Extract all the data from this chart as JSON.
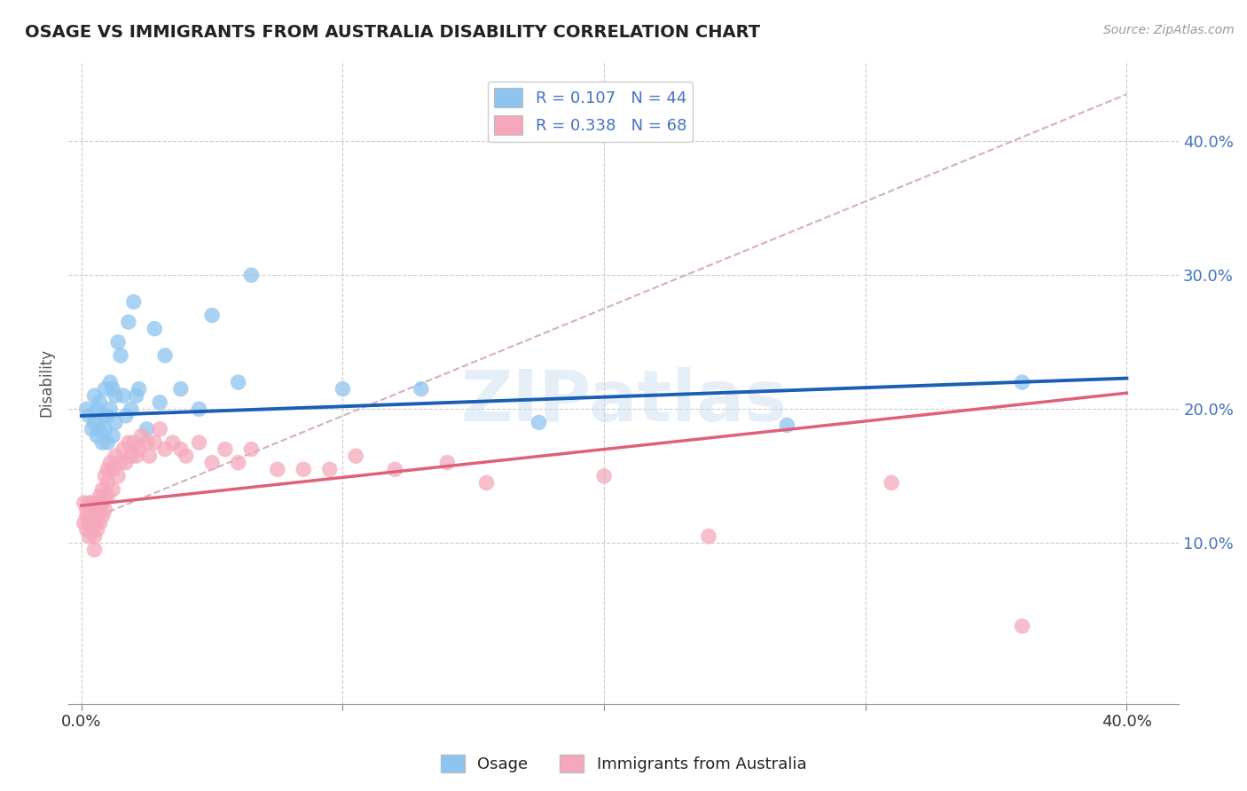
{
  "title": "OSAGE VS IMMIGRANTS FROM AUSTRALIA DISABILITY CORRELATION CHART",
  "source": "Source: ZipAtlas.com",
  "ylabel": "Disability",
  "xlim": [
    -0.005,
    0.42
  ],
  "ylim": [
    -0.02,
    0.46
  ],
  "xtick_vals": [
    0.0,
    0.1,
    0.2,
    0.3,
    0.4
  ],
  "ytick_vals": [
    0.1,
    0.2,
    0.3,
    0.4
  ],
  "xtick_labels_bottom": [
    "0.0%",
    "",
    "",
    "",
    "40.0%"
  ],
  "ytick_labels_right": [
    "10.0%",
    "20.0%",
    "30.0%",
    "40.0%"
  ],
  "legend1_label": "R = 0.107   N = 44",
  "legend2_label": "R = 0.338   N = 68",
  "osage_color": "#8ec5f0",
  "australia_color": "#f5a8bc",
  "osage_line_color": "#1a5fb4",
  "australia_line_color": "#e0607a",
  "dashed_color": "#d4b0bc",
  "title_color": "#222222",
  "axis_label_color": "#4472c4",
  "background_color": "#ffffff",
  "watermark": "ZIPatlas",
  "osage_scatter_x": [
    0.002,
    0.003,
    0.004,
    0.005,
    0.005,
    0.006,
    0.006,
    0.007,
    0.007,
    0.008,
    0.008,
    0.009,
    0.009,
    0.01,
    0.01,
    0.011,
    0.011,
    0.012,
    0.012,
    0.013,
    0.013,
    0.014,
    0.015,
    0.016,
    0.017,
    0.018,
    0.019,
    0.02,
    0.021,
    0.022,
    0.025,
    0.028,
    0.03,
    0.032,
    0.038,
    0.045,
    0.05,
    0.06,
    0.065,
    0.1,
    0.13,
    0.175,
    0.27,
    0.36
  ],
  "osage_scatter_y": [
    0.2,
    0.195,
    0.185,
    0.19,
    0.21,
    0.18,
    0.2,
    0.185,
    0.205,
    0.175,
    0.195,
    0.185,
    0.215,
    0.175,
    0.195,
    0.2,
    0.22,
    0.18,
    0.215,
    0.19,
    0.21,
    0.25,
    0.24,
    0.21,
    0.195,
    0.265,
    0.2,
    0.28,
    0.21,
    0.215,
    0.185,
    0.26,
    0.205,
    0.24,
    0.215,
    0.2,
    0.27,
    0.22,
    0.3,
    0.215,
    0.215,
    0.19,
    0.188,
    0.22
  ],
  "australia_scatter_x": [
    0.001,
    0.001,
    0.002,
    0.002,
    0.002,
    0.003,
    0.003,
    0.003,
    0.004,
    0.004,
    0.004,
    0.005,
    0.005,
    0.005,
    0.005,
    0.006,
    0.006,
    0.006,
    0.007,
    0.007,
    0.007,
    0.008,
    0.008,
    0.008,
    0.009,
    0.009,
    0.009,
    0.01,
    0.01,
    0.01,
    0.011,
    0.012,
    0.012,
    0.013,
    0.014,
    0.015,
    0.016,
    0.017,
    0.018,
    0.019,
    0.02,
    0.021,
    0.022,
    0.023,
    0.025,
    0.026,
    0.028,
    0.03,
    0.032,
    0.035,
    0.038,
    0.04,
    0.045,
    0.05,
    0.055,
    0.06,
    0.065,
    0.075,
    0.085,
    0.095,
    0.105,
    0.12,
    0.14,
    0.155,
    0.2,
    0.24,
    0.31,
    0.36
  ],
  "australia_scatter_y": [
    0.13,
    0.115,
    0.12,
    0.11,
    0.125,
    0.115,
    0.105,
    0.13,
    0.12,
    0.11,
    0.13,
    0.125,
    0.115,
    0.105,
    0.095,
    0.13,
    0.12,
    0.11,
    0.135,
    0.125,
    0.115,
    0.14,
    0.13,
    0.12,
    0.135,
    0.15,
    0.125,
    0.155,
    0.145,
    0.135,
    0.16,
    0.155,
    0.14,
    0.165,
    0.15,
    0.16,
    0.17,
    0.16,
    0.175,
    0.165,
    0.175,
    0.165,
    0.17,
    0.18,
    0.175,
    0.165,
    0.175,
    0.185,
    0.17,
    0.175,
    0.17,
    0.165,
    0.175,
    0.16,
    0.17,
    0.16,
    0.17,
    0.155,
    0.155,
    0.155,
    0.165,
    0.155,
    0.16,
    0.145,
    0.15,
    0.105,
    0.145,
    0.038
  ],
  "osage_trend": [
    0.0,
    0.4,
    0.195,
    0.223
  ],
  "aus_trend": [
    0.0,
    0.4,
    0.128,
    0.212
  ],
  "dashed_line": [
    0.0,
    0.4,
    0.115,
    0.435
  ]
}
